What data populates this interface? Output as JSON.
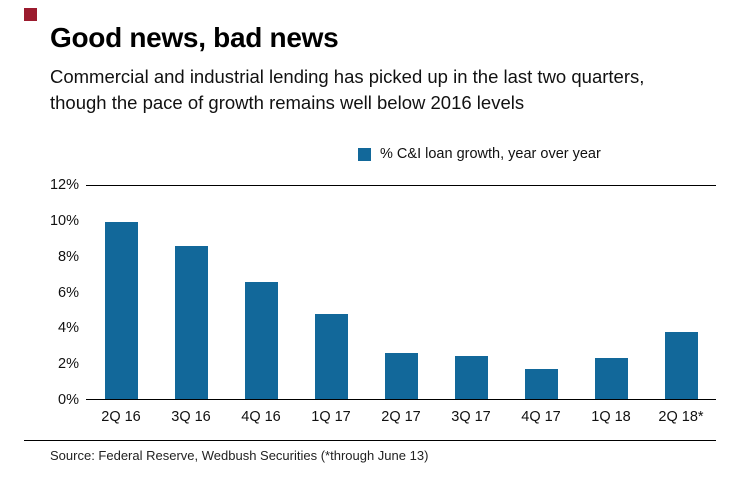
{
  "brand": {
    "mark_color": "#9b1b2e"
  },
  "header": {
    "title": "Good news, bad news",
    "subtitle": "Commercial and industrial lending has picked up in the last two quarters, though the pace of growth remains well below 2016 levels"
  },
  "legend": {
    "label": "% C&I loan growth, year over year",
    "swatch_color": "#12689a"
  },
  "source": "Source: Federal Reserve, Wedbush Securities (*through June 13)",
  "chart_data": {
    "type": "bar",
    "title": "Good news, bad news",
    "categories": [
      "2Q 16",
      "3Q 16",
      "4Q 16",
      "1Q 17",
      "2Q 17",
      "3Q 17",
      "4Q 17",
      "1Q 18",
      "2Q 18*"
    ],
    "values": [
      10,
      8.6,
      6.6,
      4.8,
      2.6,
      2.4,
      1.7,
      2.3,
      3.8
    ],
    "series_label": "% C&I loan growth, year over year",
    "xlabel": "",
    "ylabel": "% C&I loan growth, year over year",
    "ylim": [
      0,
      12
    ],
    "yticks": [
      0,
      2,
      4,
      6,
      8,
      10,
      12
    ],
    "ytick_suffix": "%",
    "grid": false,
    "legend_position": "top",
    "bar_color": "#12689a"
  }
}
